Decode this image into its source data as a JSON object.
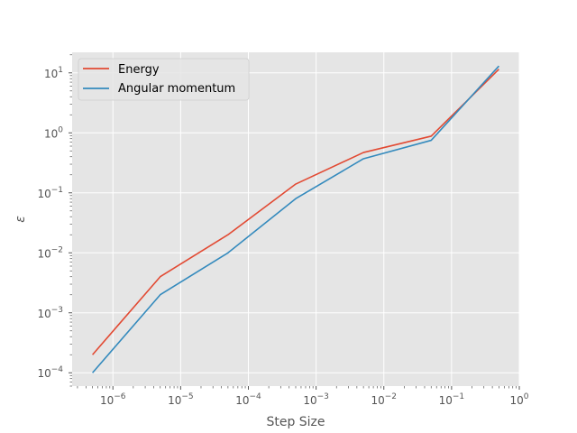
{
  "chart_data": {
    "type": "line",
    "title": "",
    "xlabel": "Step Size",
    "ylabel": "ε",
    "xscale": "log",
    "yscale": "log",
    "xlim": [
      2.5e-07,
      1
    ],
    "ylim": [
      6e-05,
      22
    ],
    "grid": true,
    "legend_position": "top-left",
    "x": [
      5e-07,
      5e-06,
      5e-05,
      0.0005,
      0.005,
      0.05,
      0.5
    ],
    "series": [
      {
        "name": "Energy",
        "color": "#E24A33",
        "values": [
          0.0002,
          0.004,
          0.02,
          0.14,
          0.47,
          0.88,
          11.5
        ]
      },
      {
        "name": "Angular momentum",
        "color": "#348ABD",
        "values": [
          0.0001,
          0.002,
          0.01,
          0.08,
          0.37,
          0.75,
          13
        ]
      }
    ],
    "x_ticks": [
      {
        "value": 1e-06,
        "base": "10",
        "exp": "−6"
      },
      {
        "value": 1e-05,
        "base": "10",
        "exp": "−5"
      },
      {
        "value": 0.0001,
        "base": "10",
        "exp": "−4"
      },
      {
        "value": 0.001,
        "base": "10",
        "exp": "−3"
      },
      {
        "value": 0.01,
        "base": "10",
        "exp": "−2"
      },
      {
        "value": 0.1,
        "base": "10",
        "exp": "−1"
      },
      {
        "value": 1,
        "base": "10",
        "exp": "0"
      }
    ],
    "y_ticks": [
      {
        "value": 0.0001,
        "base": "10",
        "exp": "−4"
      },
      {
        "value": 0.001,
        "base": "10",
        "exp": "−3"
      },
      {
        "value": 0.01,
        "base": "10",
        "exp": "−2"
      },
      {
        "value": 0.1,
        "base": "10",
        "exp": "−1"
      },
      {
        "value": 1,
        "base": "10",
        "exp": "0"
      },
      {
        "value": 10,
        "base": "10",
        "exp": "1"
      }
    ],
    "style": {
      "plot_background": "#E5E5E5",
      "grid_color": "#FFFFFF",
      "tick_color": "#555555"
    }
  }
}
